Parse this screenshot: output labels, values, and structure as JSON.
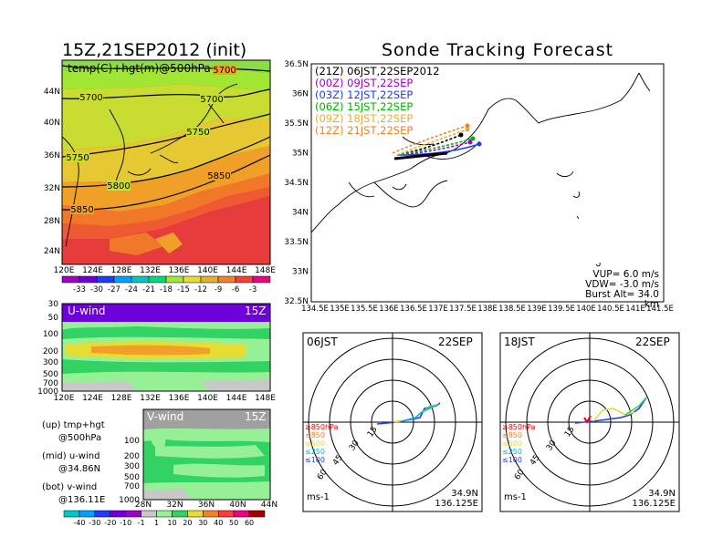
{
  "left": {
    "title": "15Z,21SEP2012 (init)",
    "map_label": "temp(C)+hgt(m)@500hPa",
    "lat_ticks": [
      "44N",
      "40N",
      "36N",
      "32N",
      "28N",
      "24N"
    ],
    "lon_ticks": [
      "120E",
      "124E",
      "128E",
      "132E",
      "136E",
      "140E",
      "144E",
      "148E"
    ],
    "contour_labels": [
      "5700",
      "5700",
      "5750",
      "5750",
      "5800",
      "5850",
      "5850",
      "5700"
    ],
    "temp_scale": [
      "-33",
      "-30",
      "-27",
      "-24",
      "-21",
      "-18",
      "-15",
      "-12",
      "-9",
      "-6",
      "-3"
    ],
    "temp_colors": [
      "#a000c8",
      "#6e00dc",
      "#1e3cff",
      "#00a0ff",
      "#00c8c8",
      "#00dc78",
      "#a0e632",
      "#e6dc32",
      "#e6af2d",
      "#f08228",
      "#fa3c3c",
      "#f00082"
    ],
    "uwind": {
      "label": "U-wind",
      "time": "15Z",
      "y_ticks": [
        "30",
        "50",
        "100",
        "200",
        "300",
        "500",
        "700",
        "1000"
      ],
      "x_ticks": [
        "120E",
        "124E",
        "128E",
        "132E",
        "136E",
        "140E",
        "144E",
        "148E"
      ]
    },
    "vwind": {
      "label": "V-wind",
      "time": "15Z",
      "y_ticks": [
        "100",
        "200",
        "300",
        "500",
        "700",
        "1000"
      ],
      "x_ticks": [
        "28N",
        "32N",
        "36N",
        "40N",
        "44N"
      ]
    },
    "legend_lines": [
      "(up) tmp+hgt",
      "@500hPa",
      "(mid) u-wind",
      "@34.86N",
      "(bot) v-wind",
      "@136.11E"
    ],
    "wind_scale": [
      "-40",
      "-30",
      "-20",
      "-10",
      "-1",
      "1",
      "10",
      "20",
      "30",
      "40",
      "50",
      "60"
    ],
    "wind_colors": [
      "#00c8c8",
      "#00a0ff",
      "#1e3cff",
      "#6e00dc",
      "#a000c8",
      "#c8c8c8",
      "#96f096",
      "#32d264",
      "#e6dc32",
      "#f08228",
      "#fa3c3c",
      "#f00082",
      "#a00000"
    ]
  },
  "right": {
    "title": "Sonde Tracking Forecast",
    "lat_ticks": [
      "36.5N",
      "36N",
      "35.5N",
      "35N",
      "34.5N",
      "34N",
      "33.5N",
      "33N",
      "32.5N"
    ],
    "lon_ticks": [
      "134.5E",
      "135E",
      "135.5E",
      "136E",
      "136.5E",
      "137E",
      "137.5E",
      "138E",
      "138.5E",
      "139E",
      "139.5E",
      "140E",
      "140.5E",
      "141E",
      "141.5E"
    ],
    "legend": [
      {
        "text": "(21Z)  06JST,22SEP2012",
        "color": "#000000"
      },
      {
        "text": "(00Z)  09JST,22SEP",
        "color": "#a000c8"
      },
      {
        "text": "(03Z)  12JST,22SEP",
        "color": "#1e3cff"
      },
      {
        "text": "(06Z)  15JST,22SEP",
        "color": "#00b400"
      },
      {
        "text": "(09Z)  18JST,22SEP",
        "color": "#e6af2d"
      },
      {
        "text": "(12Z)  21JST,22SEP",
        "color": "#f08228"
      }
    ],
    "params": [
      "VUP=  6.0  m/s",
      "VDW= -3.0  m/s",
      "Burst Alt=  34.0  km"
    ]
  },
  "hodo1": {
    "jst": "06JST",
    "date": "22SEP",
    "rings": [
      "15",
      "30",
      "45",
      "60"
    ],
    "levels": [
      "≥850hPa",
      "≤850",
      "≤500",
      "≤250",
      "≤100"
    ],
    "level_colors": [
      "#f00000",
      "#f08228",
      "#e6dc32",
      "#00b4e6",
      "#1e3cff"
    ],
    "unit": "ms-1",
    "lat": "34.9N",
    "lon": "136.125E"
  },
  "hodo2": {
    "jst": "18JST",
    "date": "22SEP",
    "rings": [
      "15",
      "30",
      "45",
      "60"
    ],
    "levels": [
      "≥850hPa",
      "≤850",
      "≤500",
      "≤250",
      "≤100"
    ],
    "level_colors": [
      "#f00000",
      "#f08228",
      "#e6dc32",
      "#00b4e6",
      "#1e3cff"
    ],
    "unit": "ms-1",
    "lat": "34.9N",
    "lon": "136.125E"
  }
}
